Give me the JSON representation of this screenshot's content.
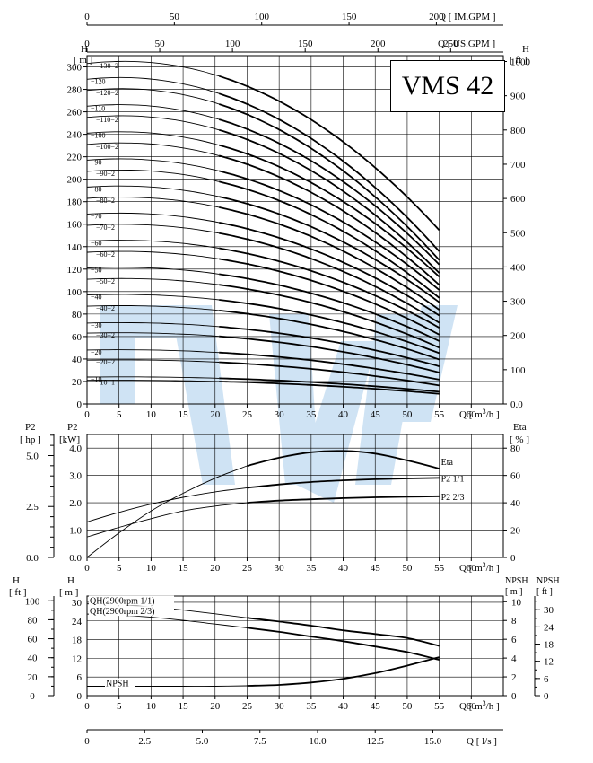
{
  "model": "VMS 42",
  "watermark_color": "#cfe3f4",
  "top_scales": {
    "im_gpm": {
      "ticks": [
        0,
        50,
        100,
        150,
        200
      ],
      "label": "Q [ IM.GPM ]"
    },
    "us_gpm": {
      "ticks": [
        0,
        50,
        100,
        150,
        200,
        250
      ],
      "label": "Q [ US.GPM ]"
    }
  },
  "chart_data": [
    {
      "type": "line",
      "id": "head",
      "y_left_title": "H",
      "y_left_unit": "[ m ]",
      "y_right_title": "H",
      "y_right_unit": "[ ft ]",
      "xlabel": "Q [ m³/h ]",
      "xlim": [
        0,
        65
      ],
      "ylim": [
        0,
        310
      ],
      "x_ticks": [
        0,
        5,
        10,
        15,
        20,
        25,
        30,
        35,
        40,
        45,
        50,
        55,
        60
      ],
      "y_ticks": [
        0,
        20,
        40,
        60,
        80,
        100,
        120,
        140,
        160,
        180,
        200,
        220,
        240,
        260,
        280,
        300
      ],
      "y_right_ticks": [
        "0.0",
        "100",
        "200",
        "300",
        "400",
        "500",
        "600",
        "700",
        "800",
        "900",
        "1000"
      ],
      "grid": true,
      "series": [
        {
          "name": "10-1",
          "y_at_zero": 21,
          "y_at_end": 12
        },
        {
          "name": "10",
          "y_at_zero": 24,
          "y_at_end": 14
        },
        {
          "name": "20-2",
          "y_at_zero": 39,
          "y_at_end": 22
        },
        {
          "name": "20",
          "y_at_zero": 48,
          "y_at_end": 28
        },
        {
          "name": "30-2",
          "y_at_zero": 63,
          "y_at_end": 37
        },
        {
          "name": "30",
          "y_at_zero": 72,
          "y_at_end": 43
        },
        {
          "name": "40-2",
          "y_at_zero": 87,
          "y_at_end": 52
        },
        {
          "name": "40",
          "y_at_zero": 97,
          "y_at_end": 58
        },
        {
          "name": "50-2",
          "y_at_zero": 111,
          "y_at_end": 66
        },
        {
          "name": "50",
          "y_at_zero": 121,
          "y_at_end": 72
        },
        {
          "name": "60-2",
          "y_at_zero": 135,
          "y_at_end": 81
        },
        {
          "name": "60",
          "y_at_zero": 145,
          "y_at_end": 87
        },
        {
          "name": "70-2",
          "y_at_zero": 159,
          "y_at_end": 95
        },
        {
          "name": "70",
          "y_at_zero": 169,
          "y_at_end": 101
        },
        {
          "name": "80-2",
          "y_at_zero": 183,
          "y_at_end": 110
        },
        {
          "name": "80",
          "y_at_zero": 193,
          "y_at_end": 116
        },
        {
          "name": "90-2",
          "y_at_zero": 207,
          "y_at_end": 124
        },
        {
          "name": "90",
          "y_at_zero": 217,
          "y_at_end": 130
        },
        {
          "name": "100-2",
          "y_at_zero": 231,
          "y_at_end": 139
        },
        {
          "name": "100",
          "y_at_zero": 241,
          "y_at_end": 145
        },
        {
          "name": "110-2",
          "y_at_zero": 255,
          "y_at_end": 153
        },
        {
          "name": "110",
          "y_at_zero": 265,
          "y_at_end": 159
        },
        {
          "name": "120-2",
          "y_at_zero": 279,
          "y_at_end": 168
        },
        {
          "name": "120",
          "y_at_zero": 289,
          "y_at_end": 174
        },
        {
          "name": "130-2",
          "y_at_zero": 303,
          "y_at_end": 198
        }
      ]
    },
    {
      "type": "line",
      "id": "power",
      "y_left_title": "P2",
      "y_left_unit": "[ hp ]",
      "y_mid_title": "P2",
      "y_mid_unit": "[kW]",
      "y_right_title": "Eta",
      "y_right_unit": "[ % ]",
      "xlabel": "Q [ m³/h ]",
      "xlim": [
        0,
        65
      ],
      "ylim": [
        0,
        4.5
      ],
      "x_ticks": [
        0,
        5,
        10,
        15,
        20,
        25,
        30,
        35,
        40,
        45,
        50,
        55,
        60
      ],
      "y_ticks": [
        "0.0",
        "1.0",
        "2.0",
        "3.0",
        "4.0"
      ],
      "y_hp_ticks": [
        "0.0",
        "2.5",
        "5.0"
      ],
      "y_right_ticks": [
        "0",
        "20",
        "40",
        "60",
        "80"
      ],
      "grid": true,
      "series": [
        {
          "name": "Eta",
          "axis": "eta",
          "x": [
            0,
            5,
            10,
            15,
            20,
            25,
            30,
            35,
            40,
            45,
            50,
            55
          ],
          "y": [
            0,
            18,
            34,
            47,
            58,
            67,
            73,
            77,
            78,
            76,
            71,
            65
          ]
        },
        {
          "name": "P2 1/1",
          "axis": "kw",
          "x": [
            0,
            5,
            10,
            15,
            20,
            25,
            30,
            35,
            40,
            45,
            50,
            55
          ],
          "y": [
            1.3,
            1.65,
            1.95,
            2.2,
            2.4,
            2.55,
            2.67,
            2.76,
            2.82,
            2.86,
            2.89,
            2.91
          ]
        },
        {
          "name": "P2 2/3",
          "axis": "kw",
          "x": [
            0,
            5,
            10,
            15,
            20,
            25,
            30,
            35,
            40,
            45,
            50,
            55
          ],
          "y": [
            0.75,
            1.1,
            1.42,
            1.7,
            1.88,
            2.0,
            2.08,
            2.13,
            2.17,
            2.2,
            2.22,
            2.24
          ]
        }
      ]
    },
    {
      "type": "line",
      "id": "npsh",
      "y_left_title": "H",
      "y_left_unit": "[ ft ]",
      "y_mid_title": "H",
      "y_mid_unit": "[ m ]",
      "y_right_title": "NPSH",
      "y_right_unit": "[ m ]",
      "y_right2_title": "NPSH",
      "y_right2_unit": "[ ft ]",
      "xlabel": "Q [ m³/h ]",
      "xlim": [
        0,
        65
      ],
      "ylim": [
        0,
        32
      ],
      "x_ticks": [
        0,
        5,
        10,
        15,
        20,
        25,
        30,
        35,
        40,
        45,
        50,
        55,
        60
      ],
      "y_ticks": [
        "0",
        "6",
        "12",
        "18",
        "24",
        "30"
      ],
      "y_ft_ticks": [
        "0",
        "20",
        "40",
        "60",
        "80",
        "100"
      ],
      "y_right_ticks": [
        "0",
        "2",
        "4",
        "6",
        "8",
        "10"
      ],
      "y_right2_ticks": [
        "0",
        "6",
        "12",
        "18",
        "24",
        "30"
      ],
      "grid": true,
      "series": [
        {
          "name": "QH(2900rpm 1/1)",
          "axis": "h",
          "x": [
            0,
            5,
            10,
            15,
            20,
            25,
            30,
            35,
            40,
            45,
            50,
            55
          ],
          "y": [
            29.5,
            29.2,
            28.5,
            27.5,
            26.3,
            25.0,
            23.8,
            22.5,
            21.0,
            19.8,
            18.5,
            16
          ]
        },
        {
          "name": "QH(2900rpm 2/3)",
          "axis": "h",
          "x": [
            0,
            5,
            10,
            15,
            20,
            25,
            30,
            35,
            40,
            45,
            50,
            55
          ],
          "y": [
            26.2,
            25.9,
            25.2,
            24.2,
            23.0,
            21.8,
            20.5,
            19.0,
            17.5,
            15.8,
            14.0,
            11.5
          ]
        },
        {
          "name": "NPSH",
          "axis": "npsh",
          "x": [
            0,
            5,
            10,
            15,
            20,
            25,
            30,
            35,
            40,
            45,
            50,
            55
          ],
          "y": [
            1.0,
            1.0,
            1.0,
            1.0,
            1.0,
            1.05,
            1.15,
            1.4,
            1.8,
            2.4,
            3.2,
            4.1
          ]
        }
      ]
    }
  ],
  "bottom_scale": {
    "ticks": [
      "0",
      "2.5",
      "5.0",
      "7.5",
      "10.0",
      "12.5",
      "15.0"
    ],
    "label": "Q [ l/s ]"
  }
}
